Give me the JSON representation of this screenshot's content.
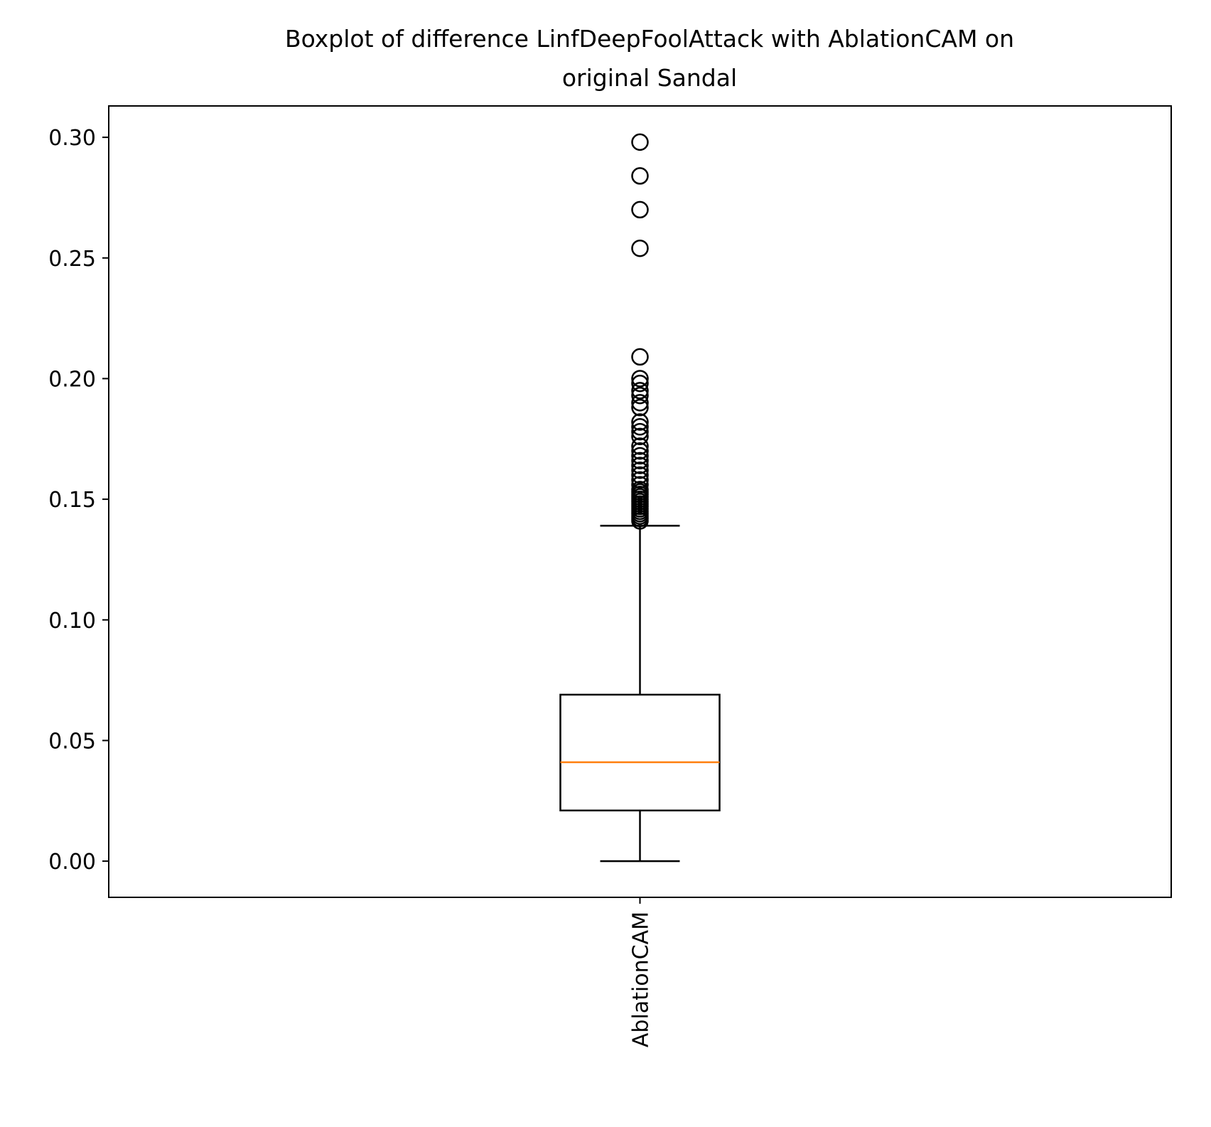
{
  "chart_data": {
    "type": "box",
    "title": "Boxplot of difference LinfDeepFoolAttack with AblationCAM on",
    "subtitle": "original Sandal",
    "xlabel": "",
    "ylabel": "",
    "ylim": [
      -0.015,
      0.313
    ],
    "yticks": [
      0.0,
      0.05,
      0.1,
      0.15,
      0.2,
      0.25,
      0.3
    ],
    "ytick_labels": [
      "0.00",
      "0.05",
      "0.10",
      "0.15",
      "0.20",
      "0.25",
      "0.30"
    ],
    "categories": [
      "AblationCAM"
    ],
    "boxes": [
      {
        "label": "AblationCAM",
        "whisker_low": 0.0,
        "q1": 0.021,
        "median": 0.041,
        "q3": 0.069,
        "whisker_high": 0.139,
        "outliers": [
          0.298,
          0.284,
          0.27,
          0.254,
          0.209,
          0.2,
          0.198,
          0.195,
          0.193,
          0.19,
          0.188,
          0.182,
          0.18,
          0.178,
          0.176,
          0.172,
          0.17,
          0.168,
          0.166,
          0.164,
          0.162,
          0.16,
          0.158,
          0.156,
          0.154,
          0.153,
          0.152,
          0.151,
          0.15,
          0.149,
          0.148,
          0.147,
          0.146,
          0.145,
          0.144,
          0.143,
          0.142,
          0.141
        ]
      }
    ],
    "colors": {
      "box": "#000000",
      "median": "#ff7f0e",
      "outlier": "#000000"
    },
    "grid": false,
    "legend": "none"
  }
}
